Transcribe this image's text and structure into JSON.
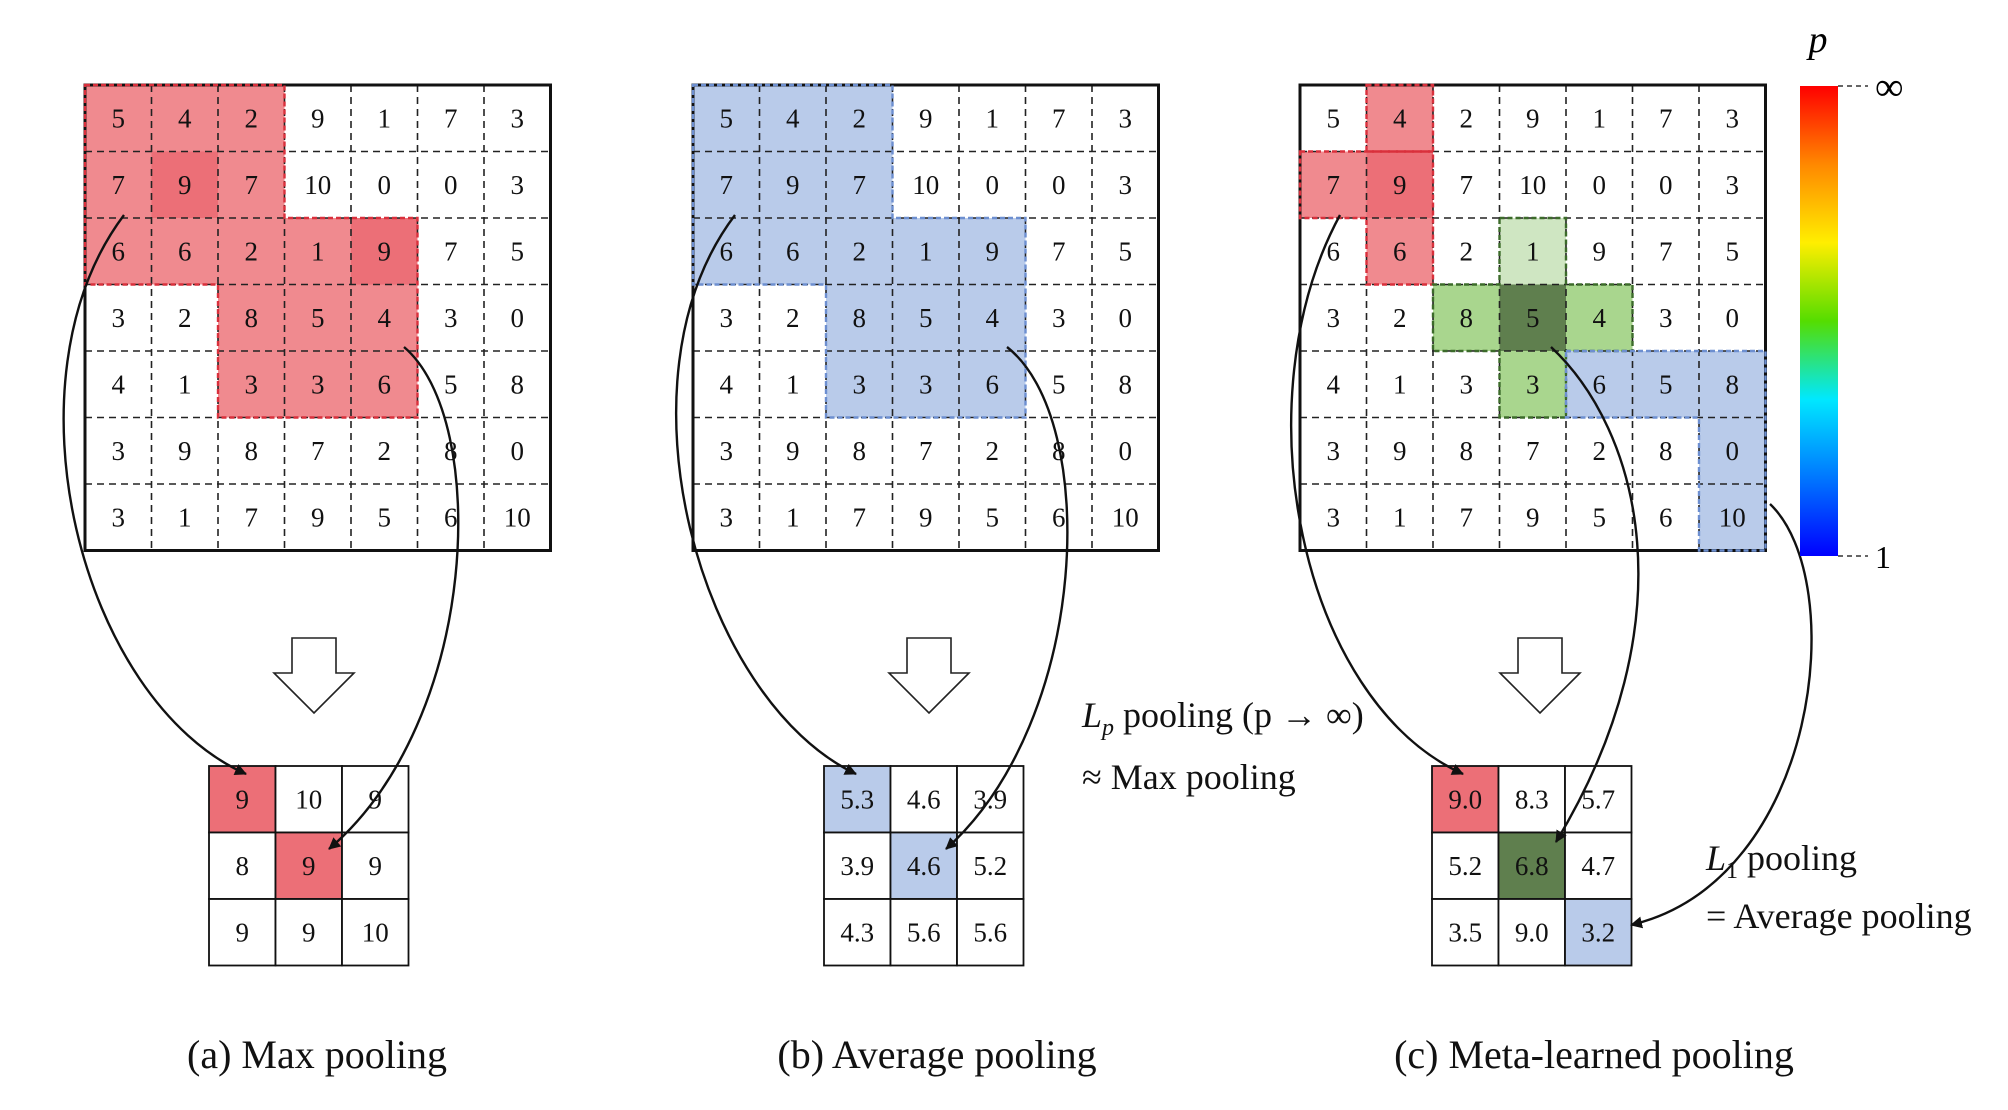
{
  "input_grid": [
    [
      5,
      4,
      2,
      9,
      1,
      7,
      3
    ],
    [
      7,
      9,
      7,
      10,
      0,
      0,
      3
    ],
    [
      6,
      6,
      2,
      1,
      9,
      7,
      5
    ],
    [
      3,
      2,
      8,
      5,
      4,
      3,
      0
    ],
    [
      4,
      1,
      3,
      3,
      6,
      5,
      8
    ],
    [
      3,
      9,
      8,
      7,
      2,
      8,
      0
    ],
    [
      3,
      1,
      7,
      9,
      5,
      6,
      10
    ]
  ],
  "panels": [
    {
      "id": "max",
      "caption": "(a) Max pooling",
      "output": [
        [
          "9",
          "10",
          "9"
        ],
        [
          "8",
          "9",
          "9"
        ],
        [
          "9",
          "9",
          "10"
        ]
      ],
      "highlight_color": "#f08a8f",
      "max_color": "#ec6f77"
    },
    {
      "id": "avg",
      "caption": "(b) Average pooling",
      "output": [
        [
          "5.3",
          "4.6",
          "3.9"
        ],
        [
          "3.9",
          "4.6",
          "5.2"
        ],
        [
          "4.3",
          "5.6",
          "5.6"
        ]
      ],
      "highlight_color": "#b9cbea"
    },
    {
      "id": "meta",
      "caption": "(c) Meta-learned pooling",
      "output": [
        [
          "9.0",
          "8.3",
          "5.7"
        ],
        [
          "5.2",
          "6.8",
          "4.7"
        ],
        [
          "3.5",
          "9.0",
          "3.2"
        ]
      ],
      "colors": {
        "red": "#f08a8f",
        "red_dark": "#ec6f77",
        "green_light": "#cfe6c2",
        "green": "#a9d68e",
        "green_dark": "#5f7f4e",
        "blue": "#b9cbea"
      }
    }
  ],
  "annotations": {
    "lp_line1_L": "L",
    "lp_line1_sub": "p",
    "lp_line1_rest": " pooling (p → ∞)",
    "lp_line2": "≈ Max pooling",
    "l1_line1_L": "L",
    "l1_line1_sub": "1",
    "l1_line1_rest": " pooling",
    "l1_line2": "= Average pooling"
  },
  "colorbar": {
    "label": "p",
    "top_label": "∞",
    "bottom_label": "1",
    "stops": [
      "#ff0000",
      "#ff8800",
      "#ffee00",
      "#55dd00",
      "#00e8ff",
      "#0077ff",
      "#0000ff"
    ]
  }
}
